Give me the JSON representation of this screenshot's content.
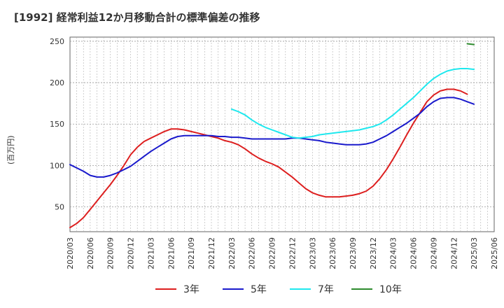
{
  "chart_data": {
    "type": "line",
    "title": "[1992]  経常利益12か月移動合計の標準偏差の推移",
    "ylabel": "(百万円)",
    "xlabel": "",
    "ylim": [
      20,
      255
    ],
    "yticks": [
      50,
      100,
      150,
      200,
      250
    ],
    "x_start": "2020-03",
    "x_end": "2025-06",
    "xticks": [
      "2020/03",
      "2020/06",
      "2020/09",
      "2020/12",
      "2021/03",
      "2021/06",
      "2021/09",
      "2021/12",
      "2022/03",
      "2022/06",
      "2022/09",
      "2022/12",
      "2023/03",
      "2023/06",
      "2023/09",
      "2023/12",
      "2024/03",
      "2024/06",
      "2024/09",
      "2024/12",
      "2025/03",
      "2025/06"
    ],
    "grid": true,
    "legend_position": "bottom",
    "series": [
      {
        "name": "3年",
        "color": "#dd1f1f",
        "points": [
          [
            "2020-03",
            25
          ],
          [
            "2020-04",
            30
          ],
          [
            "2020-05",
            37
          ],
          [
            "2020-06",
            47
          ],
          [
            "2020-07",
            57
          ],
          [
            "2020-08",
            67
          ],
          [
            "2020-09",
            77
          ],
          [
            "2020-10",
            88
          ],
          [
            "2020-11",
            100
          ],
          [
            "2020-12",
            113
          ],
          [
            "2021-01",
            122
          ],
          [
            "2021-02",
            129
          ],
          [
            "2021-03",
            133
          ],
          [
            "2021-04",
            137
          ],
          [
            "2021-05",
            141
          ],
          [
            "2021-06",
            144
          ],
          [
            "2021-07",
            144
          ],
          [
            "2021-08",
            143
          ],
          [
            "2021-09",
            141
          ],
          [
            "2021-10",
            139
          ],
          [
            "2021-11",
            137
          ],
          [
            "2021-12",
            135
          ],
          [
            "2022-01",
            133
          ],
          [
            "2022-02",
            130
          ],
          [
            "2022-03",
            128
          ],
          [
            "2022-04",
            125
          ],
          [
            "2022-05",
            120
          ],
          [
            "2022-06",
            114
          ],
          [
            "2022-07",
            109
          ],
          [
            "2022-08",
            105
          ],
          [
            "2022-09",
            102
          ],
          [
            "2022-10",
            98
          ],
          [
            "2022-11",
            92
          ],
          [
            "2022-12",
            86
          ],
          [
            "2023-01",
            79
          ],
          [
            "2023-02",
            72
          ],
          [
            "2023-03",
            67
          ],
          [
            "2023-04",
            64
          ],
          [
            "2023-05",
            62
          ],
          [
            "2023-06",
            62
          ],
          [
            "2023-07",
            62
          ],
          [
            "2023-08",
            63
          ],
          [
            "2023-09",
            64
          ],
          [
            "2023-10",
            66
          ],
          [
            "2023-11",
            69
          ],
          [
            "2023-12",
            75
          ],
          [
            "2024-01",
            84
          ],
          [
            "2024-02",
            95
          ],
          [
            "2024-03",
            108
          ],
          [
            "2024-04",
            122
          ],
          [
            "2024-05",
            137
          ],
          [
            "2024-06",
            151
          ],
          [
            "2024-07",
            164
          ],
          [
            "2024-08",
            177
          ],
          [
            "2024-09",
            185
          ],
          [
            "2024-10",
            190
          ],
          [
            "2024-11",
            192
          ],
          [
            "2024-12",
            192
          ],
          [
            "2025-01",
            190
          ],
          [
            "2025-02",
            186
          ]
        ]
      },
      {
        "name": "5年",
        "color": "#1a1acc",
        "points": [
          [
            "2020-03",
            101
          ],
          [
            "2020-04",
            97
          ],
          [
            "2020-05",
            93
          ],
          [
            "2020-06",
            88
          ],
          [
            "2020-07",
            86
          ],
          [
            "2020-08",
            86
          ],
          [
            "2020-09",
            88
          ],
          [
            "2020-10",
            91
          ],
          [
            "2020-11",
            95
          ],
          [
            "2020-12",
            99
          ],
          [
            "2021-01",
            105
          ],
          [
            "2021-02",
            111
          ],
          [
            "2021-03",
            117
          ],
          [
            "2021-04",
            122
          ],
          [
            "2021-05",
            127
          ],
          [
            "2021-06",
            132
          ],
          [
            "2021-07",
            135
          ],
          [
            "2021-08",
            136
          ],
          [
            "2021-09",
            136
          ],
          [
            "2021-10",
            136
          ],
          [
            "2021-11",
            136
          ],
          [
            "2021-12",
            136
          ],
          [
            "2022-01",
            135
          ],
          [
            "2022-02",
            135
          ],
          [
            "2022-03",
            134
          ],
          [
            "2022-04",
            134
          ],
          [
            "2022-05",
            133
          ],
          [
            "2022-06",
            132
          ],
          [
            "2022-07",
            132
          ],
          [
            "2022-08",
            132
          ],
          [
            "2022-09",
            132
          ],
          [
            "2022-10",
            132
          ],
          [
            "2022-11",
            132
          ],
          [
            "2022-12",
            133
          ],
          [
            "2023-01",
            133
          ],
          [
            "2023-02",
            132
          ],
          [
            "2023-03",
            131
          ],
          [
            "2023-04",
            130
          ],
          [
            "2023-05",
            128
          ],
          [
            "2023-06",
            127
          ],
          [
            "2023-07",
            126
          ],
          [
            "2023-08",
            125
          ],
          [
            "2023-09",
            125
          ],
          [
            "2023-10",
            125
          ],
          [
            "2023-11",
            126
          ],
          [
            "2023-12",
            128
          ],
          [
            "2024-01",
            132
          ],
          [
            "2024-02",
            136
          ],
          [
            "2024-03",
            141
          ],
          [
            "2024-04",
            146
          ],
          [
            "2024-05",
            151
          ],
          [
            "2024-06",
            157
          ],
          [
            "2024-07",
            163
          ],
          [
            "2024-08",
            171
          ],
          [
            "2024-09",
            177
          ],
          [
            "2024-10",
            181
          ],
          [
            "2024-11",
            182
          ],
          [
            "2024-12",
            182
          ],
          [
            "2025-01",
            180
          ],
          [
            "2025-02",
            177
          ],
          [
            "2025-03",
            174
          ]
        ]
      },
      {
        "name": "7年",
        "color": "#1ee8ee",
        "points": [
          [
            "2022-03",
            168
          ],
          [
            "2022-04",
            165
          ],
          [
            "2022-05",
            161
          ],
          [
            "2022-06",
            155
          ],
          [
            "2022-07",
            150
          ],
          [
            "2022-08",
            146
          ],
          [
            "2022-09",
            143
          ],
          [
            "2022-10",
            140
          ],
          [
            "2022-11",
            137
          ],
          [
            "2022-12",
            134
          ],
          [
            "2023-01",
            133
          ],
          [
            "2023-02",
            134
          ],
          [
            "2023-03",
            135
          ],
          [
            "2023-04",
            137
          ],
          [
            "2023-05",
            138
          ],
          [
            "2023-06",
            139
          ],
          [
            "2023-07",
            140
          ],
          [
            "2023-08",
            141
          ],
          [
            "2023-09",
            142
          ],
          [
            "2023-10",
            143
          ],
          [
            "2023-11",
            145
          ],
          [
            "2023-12",
            147
          ],
          [
            "2024-01",
            150
          ],
          [
            "2024-02",
            155
          ],
          [
            "2024-03",
            161
          ],
          [
            "2024-04",
            168
          ],
          [
            "2024-05",
            175
          ],
          [
            "2024-06",
            182
          ],
          [
            "2024-07",
            190
          ],
          [
            "2024-08",
            198
          ],
          [
            "2024-09",
            205
          ],
          [
            "2024-10",
            210
          ],
          [
            "2024-11",
            214
          ],
          [
            "2024-12",
            216
          ],
          [
            "2025-01",
            217
          ],
          [
            "2025-02",
            217
          ],
          [
            "2025-03",
            216
          ]
        ]
      },
      {
        "name": "10年",
        "color": "#2e8b2e",
        "points": [
          [
            "2025-02",
            247
          ],
          [
            "2025-03",
            246
          ]
        ]
      }
    ]
  }
}
